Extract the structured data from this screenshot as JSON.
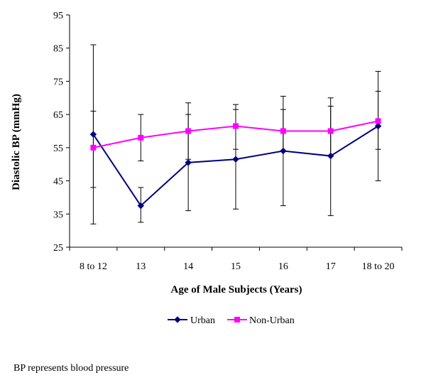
{
  "chart_data": {
    "type": "line",
    "title": "",
    "xlabel": "Age of Male Subjects (Years)",
    "ylabel": "Diastolic BP (mmHg)",
    "categories": [
      "8 to 12",
      "13",
      "14",
      "15",
      "16",
      "17",
      "18 to 20"
    ],
    "ylim": [
      25,
      95
    ],
    "yticks": [
      25,
      35,
      45,
      55,
      65,
      75,
      85,
      95
    ],
    "grid": false,
    "legend_position": "bottom",
    "series": [
      {
        "name": "Urban",
        "color": "#000080",
        "marker": "diamond",
        "values": [
          59,
          37.5,
          50.5,
          51.5,
          54,
          52.5,
          61.5
        ],
        "error_low": [
          32,
          32.5,
          36,
          36.5,
          37.5,
          34.5,
          45
        ],
        "error_high": [
          86,
          43,
          65,
          68,
          66.5,
          70,
          78
        ]
      },
      {
        "name": "Non-Urban",
        "color": "#FF00FF",
        "marker": "square",
        "values": [
          55,
          58,
          60,
          61.5,
          60,
          60,
          63
        ],
        "error_low": [
          43,
          51,
          51.5,
          54.5,
          54,
          52.5,
          54.5
        ],
        "error_high": [
          66,
          65,
          68.5,
          66.5,
          70.5,
          67.5,
          72
        ]
      }
    ]
  },
  "footnote": "BP represents blood pressure"
}
